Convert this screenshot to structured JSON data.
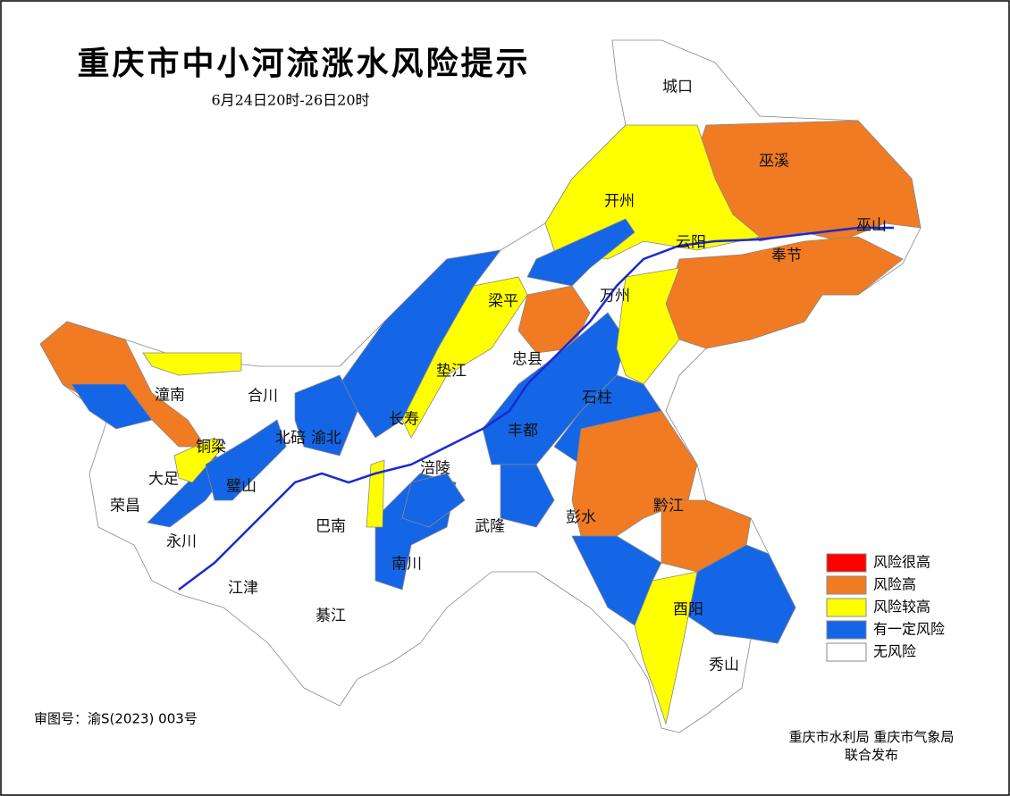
{
  "header": {
    "title": "重庆市中小河流涨水风险提示",
    "subtitle": "6月24日20时-26日20时"
  },
  "legend": [
    {
      "label": "风险很高",
      "color": "#ff0000"
    },
    {
      "label": "风险高",
      "color": "#f07b22"
    },
    {
      "label": "风险较高",
      "color": "#ffff00"
    },
    {
      "label": "有一定风险",
      "color": "#1466e6"
    },
    {
      "label": "无风险",
      "color": "#ffffff"
    }
  ],
  "districts": [
    "城口",
    "巫溪",
    "巫山",
    "开州",
    "云阳",
    "奉节",
    "万州",
    "梁平",
    "忠县",
    "垫江",
    "石柱",
    "丰都",
    "长寿",
    "涪陵",
    "渝北",
    "北碚",
    "合川",
    "潼南",
    "铜梁",
    "大足",
    "荣昌",
    "永川",
    "璧山",
    "巴南",
    "南川",
    "武隆",
    "彭水",
    "黔江",
    "酉阳",
    "秀山",
    "江津",
    "綦江"
  ],
  "footer": {
    "approval": "审图号：渝S(2023) 003号",
    "publisher": "重庆市水利局 重庆市气象局",
    "publish_note": "联合发布"
  }
}
